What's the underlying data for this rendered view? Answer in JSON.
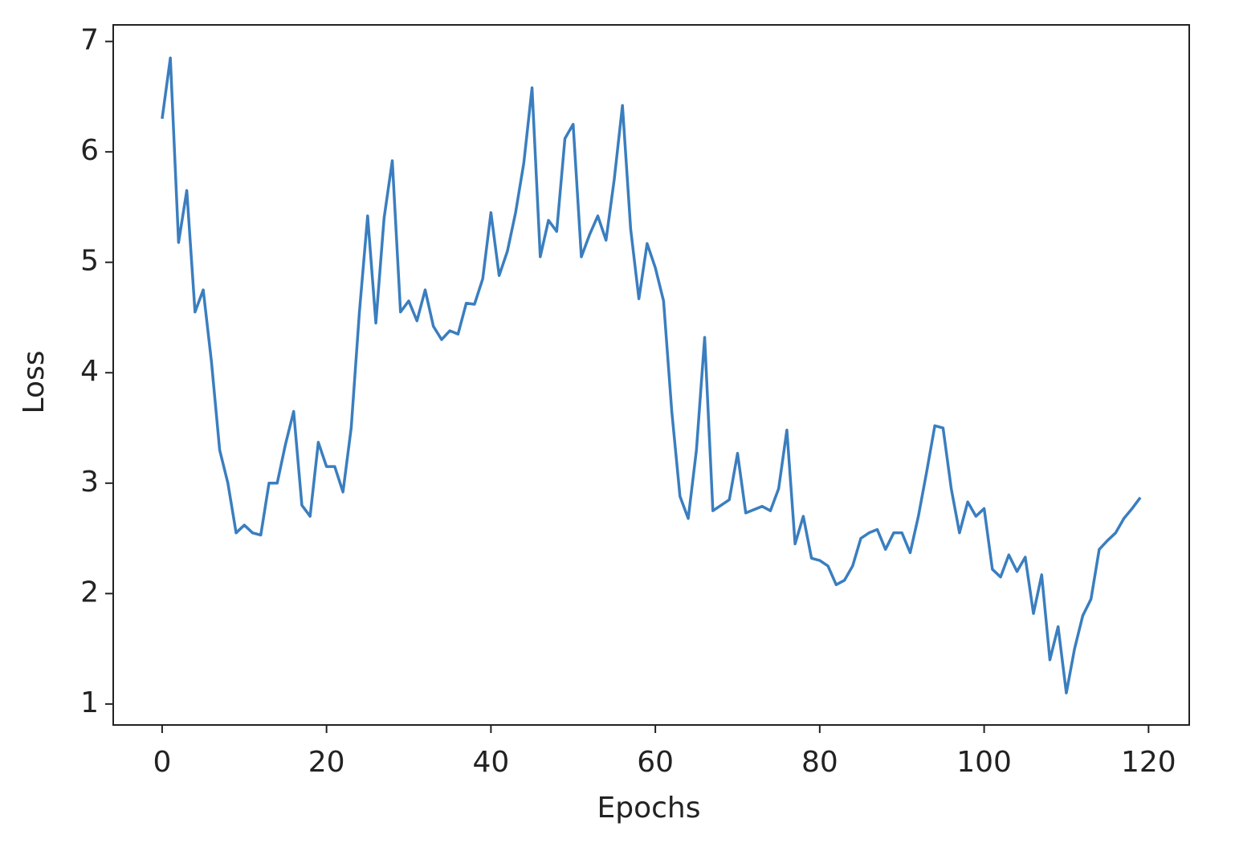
{
  "chart_data": {
    "type": "line",
    "x_label": "Epochs",
    "y_label": "Loss",
    "x": [
      0,
      1,
      2,
      3,
      4,
      5,
      6,
      7,
      8,
      9,
      10,
      11,
      12,
      13,
      14,
      15,
      16,
      17,
      18,
      19,
      20,
      21,
      22,
      23,
      24,
      25,
      26,
      27,
      28,
      29,
      30,
      31,
      32,
      33,
      34,
      35,
      36,
      37,
      38,
      39,
      40,
      41,
      42,
      43,
      44,
      45,
      46,
      47,
      48,
      49,
      50,
      51,
      52,
      53,
      54,
      55,
      56,
      57,
      58,
      59,
      60,
      61,
      62,
      63,
      64,
      65,
      66,
      67,
      68,
      69,
      70,
      71,
      72,
      73,
      74,
      75,
      76,
      77,
      78,
      79,
      80,
      81,
      82,
      83,
      84,
      85,
      86,
      87,
      88,
      89,
      90,
      91,
      92,
      93,
      94,
      95,
      96,
      97,
      98,
      99,
      100,
      101,
      102,
      103,
      104,
      105,
      106,
      107,
      108,
      109,
      110,
      111,
      112,
      113,
      114,
      115,
      116,
      117,
      118,
      119
    ],
    "values": [
      6.3,
      6.85,
      5.18,
      5.65,
      4.55,
      4.75,
      4.1,
      3.3,
      3.0,
      2.55,
      2.62,
      2.55,
      2.53,
      3.0,
      3.0,
      3.35,
      3.65,
      2.8,
      2.7,
      3.37,
      3.15,
      3.15,
      2.92,
      3.5,
      4.55,
      5.42,
      4.45,
      5.4,
      5.92,
      4.55,
      4.65,
      4.47,
      4.75,
      4.42,
      4.3,
      4.38,
      4.35,
      4.63,
      4.62,
      4.85,
      5.45,
      4.88,
      5.1,
      5.45,
      5.9,
      6.58,
      5.05,
      5.38,
      5.28,
      6.12,
      6.25,
      5.05,
      5.25,
      5.42,
      5.2,
      5.75,
      6.42,
      5.3,
      4.67,
      5.17,
      4.95,
      4.65,
      3.65,
      2.88,
      2.68,
      3.3,
      4.32,
      2.75,
      2.8,
      2.85,
      3.27,
      2.73,
      2.76,
      2.79,
      2.75,
      2.95,
      3.48,
      2.45,
      2.7,
      2.32,
      2.3,
      2.25,
      2.08,
      2.12,
      2.25,
      2.5,
      2.55,
      2.58,
      2.4,
      2.55,
      2.55,
      2.37,
      2.7,
      3.1,
      3.52,
      3.5,
      2.95,
      2.55,
      2.83,
      2.7,
      2.77,
      2.22,
      2.15,
      2.35,
      2.2,
      2.33,
      1.82,
      2.17,
      1.4,
      1.7,
      1.1,
      1.5,
      1.8,
      1.95,
      2.4,
      2.48,
      2.55,
      2.68,
      2.77,
      2.87
    ],
    "color": "#3a7ebf",
    "xlim": [
      -5.95,
      124.95
    ],
    "xticks": [
      0,
      20,
      40,
      60,
      80,
      100,
      120
    ],
    "ylim": [
      0.81,
      7.15
    ],
    "yticks": [
      1,
      2,
      3,
      4,
      5,
      6,
      7
    ],
    "grid": false
  }
}
